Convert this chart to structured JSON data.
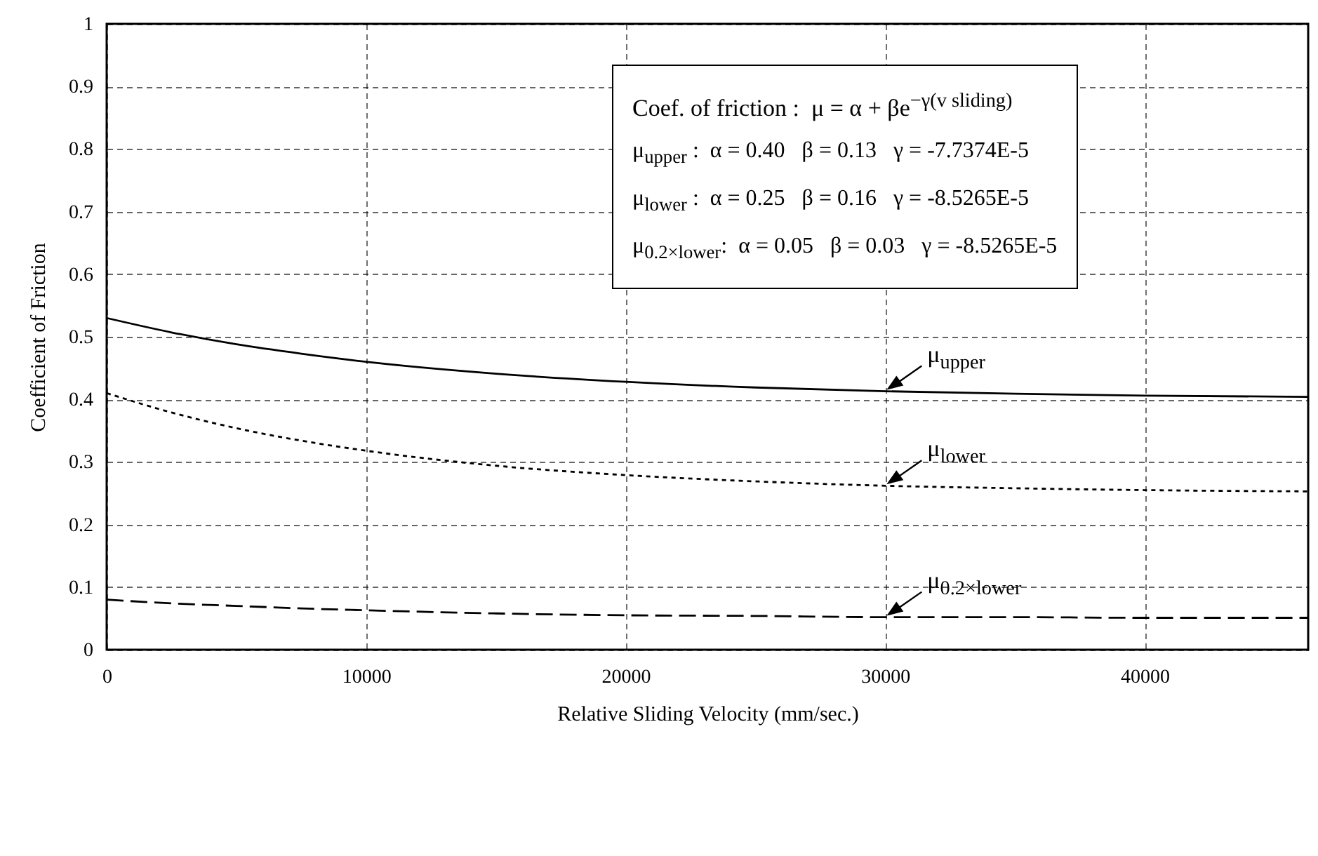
{
  "chart_data": {
    "type": "line",
    "xlabel": "Relative Sliding Velocity (mm/sec.)",
    "ylabel": "Coefficient of Friction",
    "x": [
      0,
      2500,
      5000,
      7500,
      10000,
      15000,
      20000,
      25000,
      30000,
      35000,
      40000,
      46300
    ],
    "series": [
      {
        "name": "μ$_{upper}$",
        "color": "#000000",
        "line_style": "solid",
        "values": [
          0.53,
          0.507,
          0.488,
          0.473,
          0.46,
          0.441,
          0.428,
          0.419,
          0.413,
          0.409,
          0.406,
          0.404
        ]
      },
      {
        "name": "μ$_{lower}$",
        "color": "#000000",
        "line_style": "dotted",
        "values": [
          0.41,
          0.379,
          0.354,
          0.334,
          0.318,
          0.294,
          0.279,
          0.269,
          0.262,
          0.258,
          0.255,
          0.253
        ]
      },
      {
        "name": "μ$_{0.2×lower}$",
        "color": "#000000",
        "line_style": "dashed",
        "values": [
          0.08,
          0.074,
          0.07,
          0.066,
          0.063,
          0.058,
          0.055,
          0.054,
          0.052,
          0.052,
          0.051,
          0.051
        ]
      }
    ],
    "xlim": [
      0,
      46300
    ],
    "xticks": [
      0,
      10000,
      20000,
      30000,
      40000
    ],
    "ylim": [
      0,
      1
    ],
    "yticks": [
      0,
      0.1,
      0.2,
      0.3,
      0.4,
      0.5,
      0.6,
      0.7,
      0.8,
      0.9,
      1
    ],
    "grid": true,
    "annotations": [
      "Coef. of friction :  μ = α + βe$^{−γ(v sliding)}$",
      "μ$_{upper}$ :  α = 0.40   β = 0.13   γ = -7.7374E-5",
      "μ$_{lower}$ :  α = 0.25   β = 0.16   γ = -8.5265E-5",
      "μ$_{0.2×lower}$:  α = 0.05   β = 0.03   γ = -8.5265E-5"
    ]
  }
}
